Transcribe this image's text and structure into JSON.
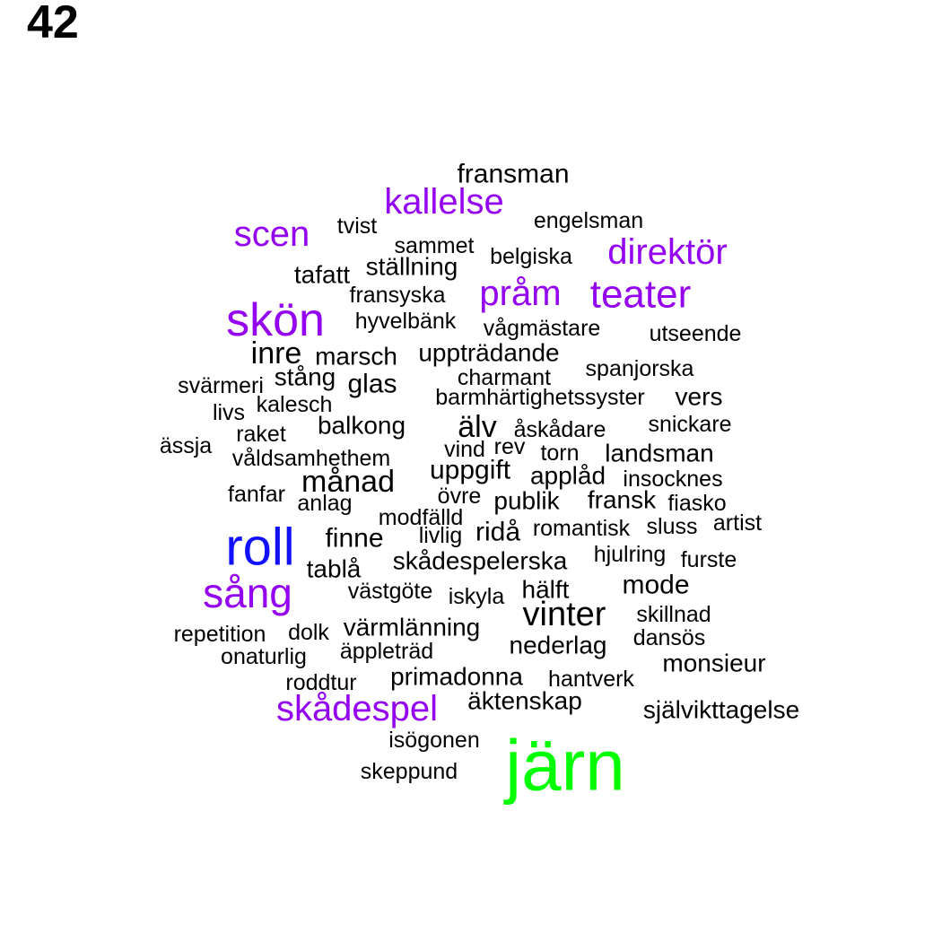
{
  "panel_number": "42",
  "colors": {
    "black": "#000000",
    "purple": "#9400f0",
    "blue": "#1010ff",
    "green": "#00ff00"
  },
  "words": [
    {
      "text": "fransman",
      "color": "black"
    },
    {
      "text": "kallelse",
      "color": "purple"
    },
    {
      "text": "engelsman",
      "color": "black"
    },
    {
      "text": "scen",
      "color": "purple"
    },
    {
      "text": "tvist",
      "color": "black"
    },
    {
      "text": "sammet",
      "color": "black"
    },
    {
      "text": "direktör",
      "color": "purple"
    },
    {
      "text": "belgiska",
      "color": "black"
    },
    {
      "text": "ställning",
      "color": "black"
    },
    {
      "text": "tafatt",
      "color": "black"
    },
    {
      "text": "pråm",
      "color": "purple"
    },
    {
      "text": "teater",
      "color": "purple"
    },
    {
      "text": "fransyska",
      "color": "black"
    },
    {
      "text": "skön",
      "color": "purple"
    },
    {
      "text": "hyvelbänk",
      "color": "black"
    },
    {
      "text": "vågmästare",
      "color": "black"
    },
    {
      "text": "utseende",
      "color": "black"
    },
    {
      "text": "inre",
      "color": "black"
    },
    {
      "text": "marsch",
      "color": "black"
    },
    {
      "text": "uppträdande",
      "color": "black"
    },
    {
      "text": "spanjorska",
      "color": "black"
    },
    {
      "text": "stång",
      "color": "black"
    },
    {
      "text": "charmant",
      "color": "black"
    },
    {
      "text": "svärmeri",
      "color": "black"
    },
    {
      "text": "glas",
      "color": "black"
    },
    {
      "text": "vers",
      "color": "black"
    },
    {
      "text": "kalesch",
      "color": "black"
    },
    {
      "text": "barmhärtighetssyster",
      "color": "black"
    },
    {
      "text": "livs",
      "color": "black"
    },
    {
      "text": "balkong",
      "color": "black"
    },
    {
      "text": "älv",
      "color": "black"
    },
    {
      "text": "åskådare",
      "color": "black"
    },
    {
      "text": "snickare",
      "color": "black"
    },
    {
      "text": "raket",
      "color": "black"
    },
    {
      "text": "ässja",
      "color": "black"
    },
    {
      "text": "vind",
      "color": "black"
    },
    {
      "text": "rev",
      "color": "black"
    },
    {
      "text": "torn",
      "color": "black"
    },
    {
      "text": "landsman",
      "color": "black"
    },
    {
      "text": "våldsamhethem",
      "color": "black"
    },
    {
      "text": "uppgift",
      "color": "black"
    },
    {
      "text": "månad",
      "color": "black"
    },
    {
      "text": "applåd",
      "color": "black"
    },
    {
      "text": "insocknes",
      "color": "black"
    },
    {
      "text": "fanfar",
      "color": "black"
    },
    {
      "text": "övre",
      "color": "black"
    },
    {
      "text": "anlag",
      "color": "black"
    },
    {
      "text": "publik",
      "color": "black"
    },
    {
      "text": "fransk",
      "color": "black"
    },
    {
      "text": "fiasko",
      "color": "black"
    },
    {
      "text": "modfälld",
      "color": "black"
    },
    {
      "text": "artist",
      "color": "black"
    },
    {
      "text": "romantisk",
      "color": "black"
    },
    {
      "text": "sluss",
      "color": "black"
    },
    {
      "text": "roll",
      "color": "blue"
    },
    {
      "text": "ridå",
      "color": "black"
    },
    {
      "text": "finne",
      "color": "black"
    },
    {
      "text": "livlig",
      "color": "black"
    },
    {
      "text": "hjulring",
      "color": "black"
    },
    {
      "text": "furste",
      "color": "black"
    },
    {
      "text": "skådespelerska",
      "color": "black"
    },
    {
      "text": "tablå",
      "color": "black"
    },
    {
      "text": "sång",
      "color": "purple"
    },
    {
      "text": "mode",
      "color": "black"
    },
    {
      "text": "västgöte",
      "color": "black"
    },
    {
      "text": "hälft",
      "color": "black"
    },
    {
      "text": "iskyla",
      "color": "black"
    },
    {
      "text": "vinter",
      "color": "black"
    },
    {
      "text": "skillnad",
      "color": "black"
    },
    {
      "text": "värmlänning",
      "color": "black"
    },
    {
      "text": "repetition",
      "color": "black"
    },
    {
      "text": "dolk",
      "color": "black"
    },
    {
      "text": "dansös",
      "color": "black"
    },
    {
      "text": "nederlag",
      "color": "black"
    },
    {
      "text": "äppleträd",
      "color": "black"
    },
    {
      "text": "onaturlig",
      "color": "black"
    },
    {
      "text": "monsieur",
      "color": "black"
    },
    {
      "text": "primadonna",
      "color": "black"
    },
    {
      "text": "roddtur",
      "color": "black"
    },
    {
      "text": "hantverk",
      "color": "black"
    },
    {
      "text": "skådespel",
      "color": "purple"
    },
    {
      "text": "äktenskap",
      "color": "black"
    },
    {
      "text": "självikttagelse",
      "color": "black"
    },
    {
      "text": "isögonen",
      "color": "black"
    },
    {
      "text": "järn",
      "color": "green"
    },
    {
      "text": "skeppund",
      "color": "black"
    }
  ]
}
